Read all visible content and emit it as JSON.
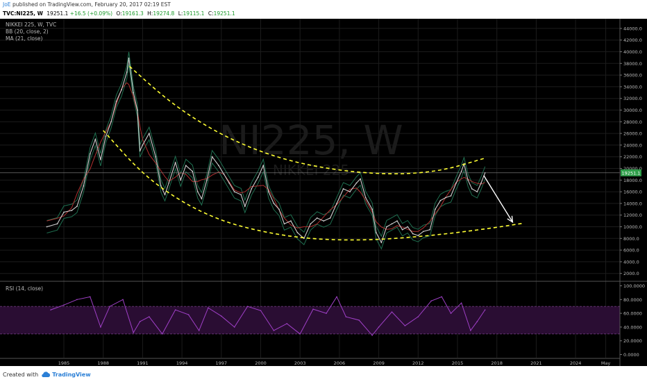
{
  "header": {
    "user": "JoE",
    "published": "published on TradingView.com, February 20, 2017 02:19 EST",
    "symbol": "TVC:NI225, W",
    "last": "19251.1",
    "change": "+16.5 (+0.09%)",
    "open_label": "O:",
    "open": "19161.3",
    "high_label": "H:",
    "high": "19274.8",
    "low_label": "L:",
    "low": "19115.1",
    "close_label": "C:",
    "close": "19251.1"
  },
  "legend": {
    "title": "NIKKEI 225, W, TVC",
    "bb": "BB (20, close, 2)",
    "ma": "MA (21, close)"
  },
  "watermark": {
    "big": "NI225, W",
    "small": "NIKKEI 225"
  },
  "rsi_label": "RSI (14, close)",
  "footer": {
    "created": "Created with",
    "brand": "TradingView"
  },
  "colors": {
    "background": "#000000",
    "grid": "#1c1c1c",
    "price_line": "#d0d0d0",
    "bb_band": "#1f6f50",
    "ma_line": "#b03030",
    "trend_dash": "#ffff33",
    "arrow": "#ffffff",
    "rsi_line": "#a040c8",
    "rsi_band_fill": "#2a0d33",
    "rsi_band_border": "#6a3a7a",
    "price_badge": "#2f9e4a"
  },
  "chart_data": [
    {
      "type": "line",
      "title": "NIKKEI 225, W, TVC",
      "x_ticks": [
        "1985",
        "1988",
        "1991",
        "1994",
        "1997",
        "2000",
        "2003",
        "2006",
        "2009",
        "2012",
        "2015",
        "2018",
        "2021",
        "2024",
        "May"
      ],
      "y_ticks": [
        "2000.0",
        "4000.0",
        "6000.0",
        "8000.0",
        "10000.0",
        "12000.0",
        "14000.0",
        "16000.0",
        "18000.0",
        "20000.0",
        "22000.0",
        "24000.0",
        "26000.0",
        "28000.0",
        "30000.0",
        "32000.0",
        "34000.0",
        "36000.0",
        "38000.0",
        "40000.0",
        "42000.0",
        "44000.0"
      ],
      "ylim": [
        0,
        45000
      ],
      "xlim": [
        1983.8,
        2027.8
      ],
      "last_price_label": "19251.1",
      "series": [
        {
          "name": "NIKKEI 225",
          "x": [
            1983.7,
            1984.5,
            1985.0,
            1985.6,
            1986.0,
            1986.5,
            1987.0,
            1987.4,
            1987.8,
            1988.2,
            1988.6,
            1989.0,
            1989.4,
            1989.8,
            1989.95,
            1990.3,
            1990.6,
            1990.8,
            1991.0,
            1991.5,
            1992.0,
            1992.4,
            1992.7,
            1993.0,
            1993.5,
            1993.9,
            1994.3,
            1994.8,
            1995.2,
            1995.5,
            1995.9,
            1996.3,
            1996.8,
            1997.2,
            1997.6,
            1998.0,
            1998.5,
            1998.8,
            1999.3,
            1999.8,
            2000.2,
            2000.6,
            2001.0,
            2001.4,
            2001.8,
            2002.3,
            2002.8,
            2003.3,
            2003.8,
            2004.3,
            2004.8,
            2005.3,
            2005.8,
            2006.3,
            2006.8,
            2007.3,
            2007.6,
            2008.0,
            2008.5,
            2008.8,
            2009.2,
            2009.6,
            2010.0,
            2010.4,
            2010.8,
            2011.2,
            2011.6,
            2012.0,
            2012.4,
            2012.9,
            2013.3,
            2013.7,
            2014.1,
            2014.5,
            2014.9,
            2015.3,
            2015.5,
            2015.8,
            2016.1,
            2016.5,
            2016.8,
            2017.1
          ],
          "values": [
            10000,
            10500,
            12500,
            12800,
            13500,
            17000,
            22500,
            25000,
            21500,
            25500,
            28000,
            31500,
            33500,
            36500,
            38900,
            33000,
            30000,
            23000,
            24000,
            26000,
            22000,
            17000,
            15500,
            17500,
            21000,
            18000,
            20500,
            19500,
            16000,
            14800,
            18000,
            22000,
            20500,
            19000,
            17500,
            16000,
            15500,
            13500,
            16500,
            18500,
            20500,
            16000,
            14000,
            13000,
            10500,
            11000,
            9000,
            8000,
            10500,
            11500,
            11000,
            11500,
            14000,
            16500,
            16000,
            17500,
            18200,
            15000,
            13000,
            9000,
            7300,
            10000,
            10500,
            11000,
            9500,
            10000,
            8800,
            8500,
            9200,
            9500,
            13000,
            14500,
            15000,
            15300,
            17500,
            19500,
            20800,
            18000,
            16500,
            16000,
            17500,
            19251.1
          ]
        }
      ],
      "annotations": {
        "upper_dashed_arc": {
          "x": [
            1990.0,
            1993.0,
            1996.0,
            1999.0,
            2002.0,
            2005.0,
            2008.0,
            2011.0,
            2014.0,
            2017.0
          ],
          "values": [
            37500,
            31500,
            27000,
            23700,
            21400,
            20000,
            19200,
            19000,
            19700,
            21700
          ]
        },
        "lower_dashed_arc": {
          "x": [
            1988.0,
            1991.0,
            1994.0,
            1997.0,
            2000.0,
            2003.0,
            2006.0,
            2009.0,
            2012.0,
            2015.0,
            2018.0,
            2020.0
          ],
          "values": [
            26500,
            19000,
            14200,
            11000,
            9200,
            8100,
            7700,
            7800,
            8300,
            9000,
            9900,
            10600
          ]
        },
        "arrow": {
          "from": [
            2017.0,
            18800
          ],
          "to": [
            2019.2,
            10800
          ]
        }
      }
    },
    {
      "type": "line",
      "title": "RSI (14, close)",
      "y_ticks": [
        "0.0000",
        "20.0000",
        "40.0000",
        "60.0000",
        "80.0000",
        "100.0000"
      ],
      "ylim": [
        0,
        100
      ],
      "band": [
        30,
        70
      ],
      "series": [
        {
          "name": "RSI",
          "x": [
            1984,
            1985,
            1986,
            1987,
            1987.8,
            1988.5,
            1989.5,
            1990.3,
            1990.8,
            1991.5,
            1992.5,
            1993.5,
            1994.5,
            1995.3,
            1996,
            1997,
            1998,
            1999,
            2000,
            2001,
            2002,
            2003,
            2004,
            2005,
            2005.8,
            2006.5,
            2007.5,
            2008.5,
            2009,
            2010,
            2011,
            2012,
            2013,
            2013.8,
            2014.5,
            2015.3,
            2016,
            2016.5,
            2017.1
          ],
          "values": [
            65,
            72,
            80,
            84,
            40,
            70,
            80,
            32,
            48,
            55,
            30,
            65,
            58,
            35,
            68,
            56,
            40,
            70,
            64,
            35,
            45,
            30,
            66,
            60,
            84,
            55,
            50,
            28,
            40,
            62,
            42,
            55,
            78,
            84,
            60,
            75,
            35,
            48,
            65
          ]
        }
      ]
    }
  ]
}
